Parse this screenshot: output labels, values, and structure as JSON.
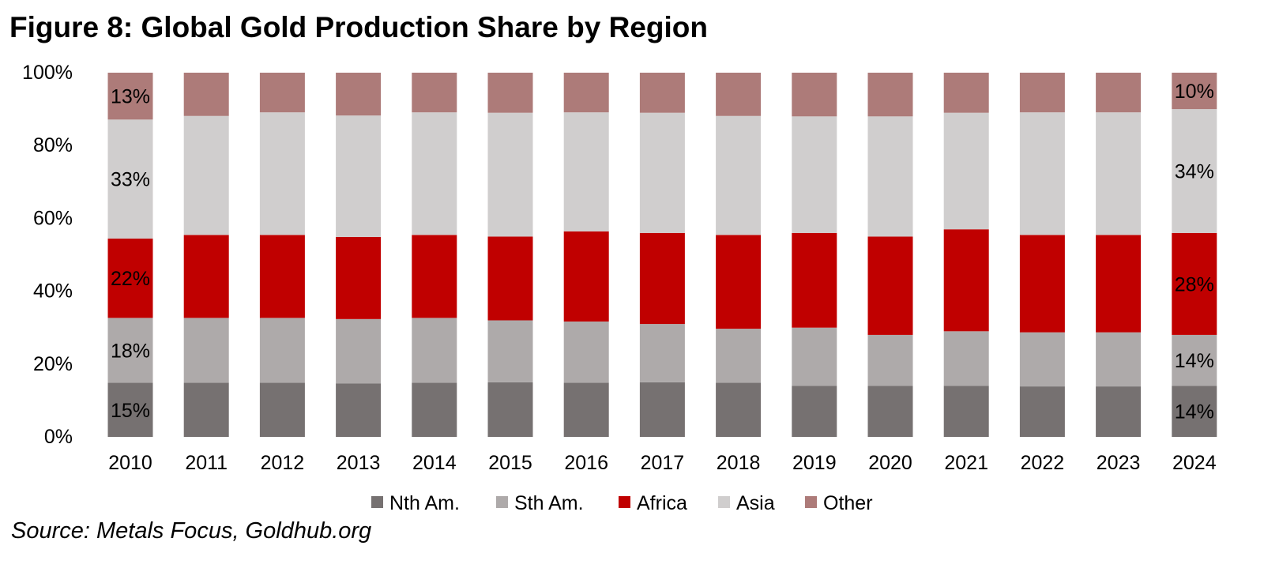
{
  "title": "Figure 8: Global Gold Production Share by Region",
  "source": "Source: Metals Focus, Goldhub.org",
  "chart_data": {
    "type": "bar",
    "stacked": true,
    "percent": true,
    "categories": [
      "2010",
      "2011",
      "2012",
      "2013",
      "2014",
      "2015",
      "2016",
      "2017",
      "2018",
      "2019",
      "2020",
      "2021",
      "2022",
      "2023",
      "2024"
    ],
    "series": [
      {
        "name": "Nth Am.",
        "color": "#767171",
        "values": [
          15,
          15,
          15,
          15,
          15,
          15,
          15,
          15,
          15,
          14,
          14,
          14,
          14,
          14,
          14
        ]
      },
      {
        "name": "Sth Am.",
        "color": "#AEAAAA",
        "values": [
          18,
          18,
          18,
          18,
          18,
          17,
          17,
          16,
          15,
          16,
          14,
          15,
          15,
          15,
          14
        ]
      },
      {
        "name": "Africa",
        "color": "#C00000",
        "values": [
          22,
          23,
          23,
          23,
          23,
          23,
          25,
          25,
          26,
          26,
          27,
          28,
          27,
          27,
          28
        ]
      },
      {
        "name": "Asia",
        "color": "#D0CECE",
        "values": [
          33,
          33,
          34,
          34,
          34,
          34,
          33,
          33,
          33,
          32,
          33,
          32,
          34,
          34,
          34
        ]
      },
      {
        "name": "Other",
        "color": "#AD7B79",
        "values": [
          13,
          12,
          11,
          12,
          11,
          11,
          11,
          11,
          12,
          12,
          12,
          11,
          11,
          11,
          10
        ]
      }
    ],
    "data_labels": [
      {
        "category": "2010",
        "series": "Nth Am.",
        "text": "15%"
      },
      {
        "category": "2010",
        "series": "Sth Am.",
        "text": "18%"
      },
      {
        "category": "2010",
        "series": "Africa",
        "text": "22%"
      },
      {
        "category": "2010",
        "series": "Asia",
        "text": "33%"
      },
      {
        "category": "2010",
        "series": "Other",
        "text": "13%"
      },
      {
        "category": "2024",
        "series": "Nth Am.",
        "text": "14%"
      },
      {
        "category": "2024",
        "series": "Sth Am.",
        "text": "14%"
      },
      {
        "category": "2024",
        "series": "Africa",
        "text": "28%"
      },
      {
        "category": "2024",
        "series": "Asia",
        "text": "34%"
      },
      {
        "category": "2024",
        "series": "Other",
        "text": "10%"
      }
    ],
    "yticks": [
      "0%",
      "20%",
      "40%",
      "60%",
      "80%",
      "100%"
    ],
    "ylim": [
      0,
      100
    ],
    "legend_position": "bottom",
    "grid": false
  }
}
